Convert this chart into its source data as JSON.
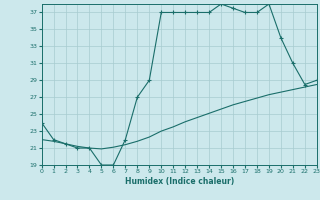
{
  "bg_color": "#cce8ec",
  "grid_color": "#a8ccd0",
  "line_color": "#1a6e6a",
  "xlabel": "Humidex (Indice chaleur)",
  "xlim": [
    0,
    23
  ],
  "ylim": [
    19,
    38
  ],
  "yticks": [
    19,
    21,
    23,
    25,
    27,
    29,
    31,
    33,
    35,
    37
  ],
  "xticks": [
    0,
    1,
    2,
    3,
    4,
    5,
    6,
    7,
    8,
    9,
    10,
    11,
    12,
    13,
    14,
    15,
    16,
    17,
    18,
    19,
    20,
    21,
    22,
    23
  ],
  "line_main_x": [
    0,
    1,
    2,
    3,
    4,
    5,
    6,
    7,
    8,
    9,
    10,
    11,
    12,
    13,
    14,
    15,
    16,
    17,
    18,
    19,
    20,
    21,
    22,
    23
  ],
  "line_main_y": [
    24,
    22,
    21.5,
    21,
    21,
    19,
    19,
    22,
    27,
    29,
    37,
    37,
    37,
    37,
    37,
    38,
    37.5,
    37,
    37,
    38,
    34,
    31,
    28.5,
    29
  ],
  "line_trend_x": [
    0,
    1,
    2,
    3,
    4,
    5,
    6,
    7,
    8,
    9,
    10,
    11,
    12,
    13,
    14,
    15,
    16,
    17,
    18,
    19,
    20,
    21,
    22,
    23
  ],
  "line_trend_y": [
    22,
    21.8,
    21.5,
    21.2,
    21.0,
    20.9,
    21.1,
    21.4,
    21.8,
    22.3,
    23.0,
    23.5,
    24.1,
    24.6,
    25.1,
    25.6,
    26.1,
    26.5,
    26.9,
    27.3,
    27.6,
    27.9,
    28.2,
    28.5
  ]
}
